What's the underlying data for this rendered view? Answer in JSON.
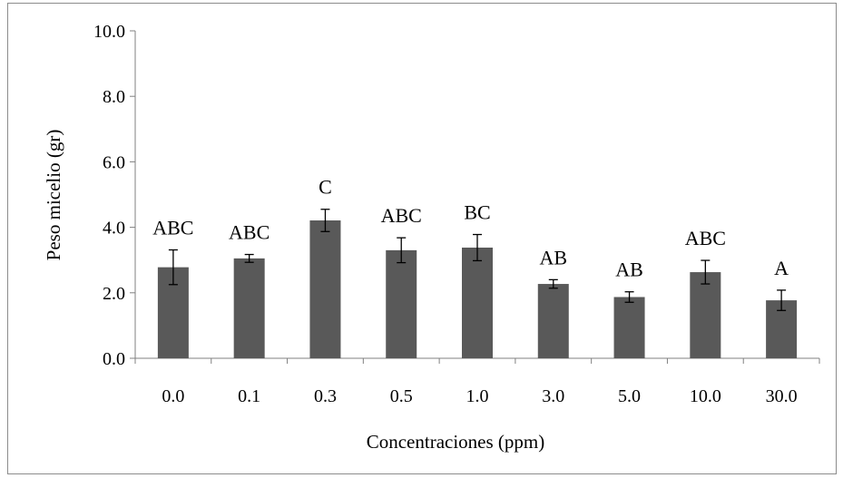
{
  "chart_data": {
    "type": "bar",
    "xlabel": "Concentraciones (ppm)",
    "ylabel": "Peso micelio  (gr)",
    "ylim": [
      0,
      10
    ],
    "yticks": [
      "0.0",
      "2.0",
      "4.0",
      "6.0",
      "8.0",
      "10.0"
    ],
    "ytick_values": [
      0,
      2,
      4,
      6,
      8,
      10
    ],
    "categories": [
      "0.0",
      "0.1",
      "0.3",
      "0.5",
      "1.0",
      "3.0",
      "5.0",
      "10.0",
      "30.0"
    ],
    "values": [
      2.78,
      3.05,
      4.21,
      3.3,
      3.38,
      2.27,
      1.87,
      2.63,
      1.77
    ],
    "errors": [
      0.53,
      0.12,
      0.34,
      0.38,
      0.4,
      0.13,
      0.16,
      0.36,
      0.31
    ],
    "significance_labels": [
      "ABC",
      "ABC",
      "C",
      "ABC",
      "BC",
      "AB",
      "AB",
      "ABC",
      "A"
    ],
    "grid": false,
    "legend": "none",
    "bar_color": "#595959"
  }
}
